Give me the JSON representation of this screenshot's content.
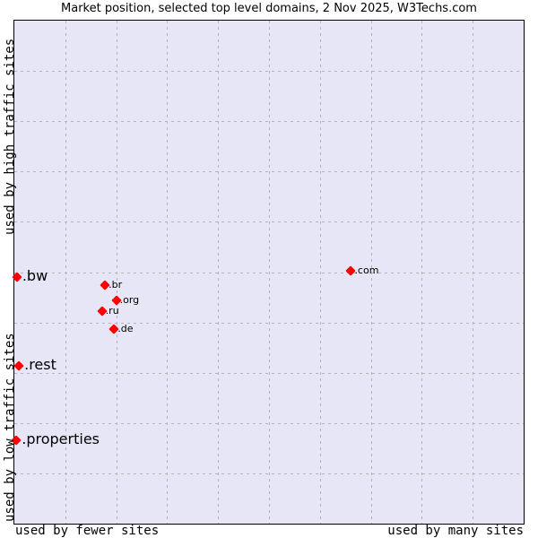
{
  "chart_data": {
    "type": "scatter",
    "title": "Market position, selected top level domains, 2 Nov 2025, W3Techs.com",
    "xlabel_left": "used by fewer sites",
    "xlabel_right": "used by many sites",
    "ylabel_bottom": "used by low traffic sites",
    "ylabel_top": "used by high traffic sites",
    "xlim": [
      0,
      100
    ],
    "ylim": [
      0,
      100
    ],
    "grid": true,
    "grid_divisions": 10,
    "marker_color": "#ff0000",
    "background_color": "#e6e6f7",
    "points": [
      {
        "label": ".com",
        "x": 66.1,
        "y": 50.3,
        "size": "small"
      },
      {
        "label": ".br",
        "x": 17.8,
        "y": 47.4,
        "size": "small"
      },
      {
        "label": ".org",
        "x": 20.0,
        "y": 44.4,
        "size": "small"
      },
      {
        "label": ".ru",
        "x": 17.2,
        "y": 42.3,
        "size": "small"
      },
      {
        "label": ".de",
        "x": 19.6,
        "y": 38.7,
        "size": "small"
      },
      {
        "label": ".bw",
        "x": 0.5,
        "y": 49.0,
        "size": "large"
      },
      {
        "label": ".rest",
        "x": 0.9,
        "y": 31.4,
        "size": "large"
      },
      {
        "label": ".properties",
        "x": 0.4,
        "y": 16.5,
        "size": "large"
      }
    ]
  }
}
